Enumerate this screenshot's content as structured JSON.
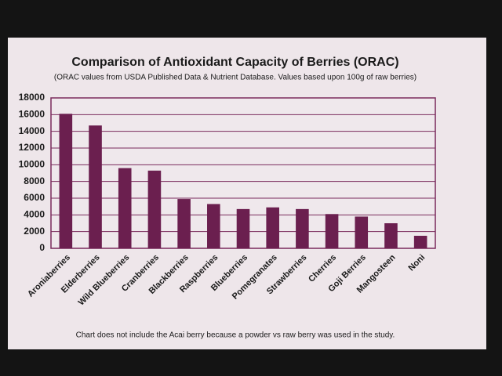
{
  "chart_data": {
    "type": "bar",
    "title": "Comparison of Antioxidant Capacity of Berries (ORAC)",
    "subtitle": "(ORAC values from USDA Published Data & Nutrient Database. Values based upon 100g of raw berries)",
    "categories": [
      "Aroniaberries",
      "Elderberries",
      "Wild Blueberries",
      "Cranberries",
      "Blackberries",
      "Raspberries",
      "Blueberries",
      "Pomegranates",
      "Strawberries",
      "Cherries",
      "Goji Berries",
      "Mangosteen",
      "Noni"
    ],
    "values": [
      16100,
      14700,
      9600,
      9300,
      5900,
      5300,
      4700,
      4900,
      4700,
      4100,
      3800,
      3000,
      1500
    ],
    "color": "#6b1f4f",
    "ylim": [
      0,
      18000
    ],
    "yticks": [
      0,
      2000,
      4000,
      6000,
      8000,
      10000,
      12000,
      14000,
      16000,
      18000
    ],
    "grid": true,
    "annotation": "Chart does not include the Acai berry because a powder vs raw berry was used in the study."
  }
}
